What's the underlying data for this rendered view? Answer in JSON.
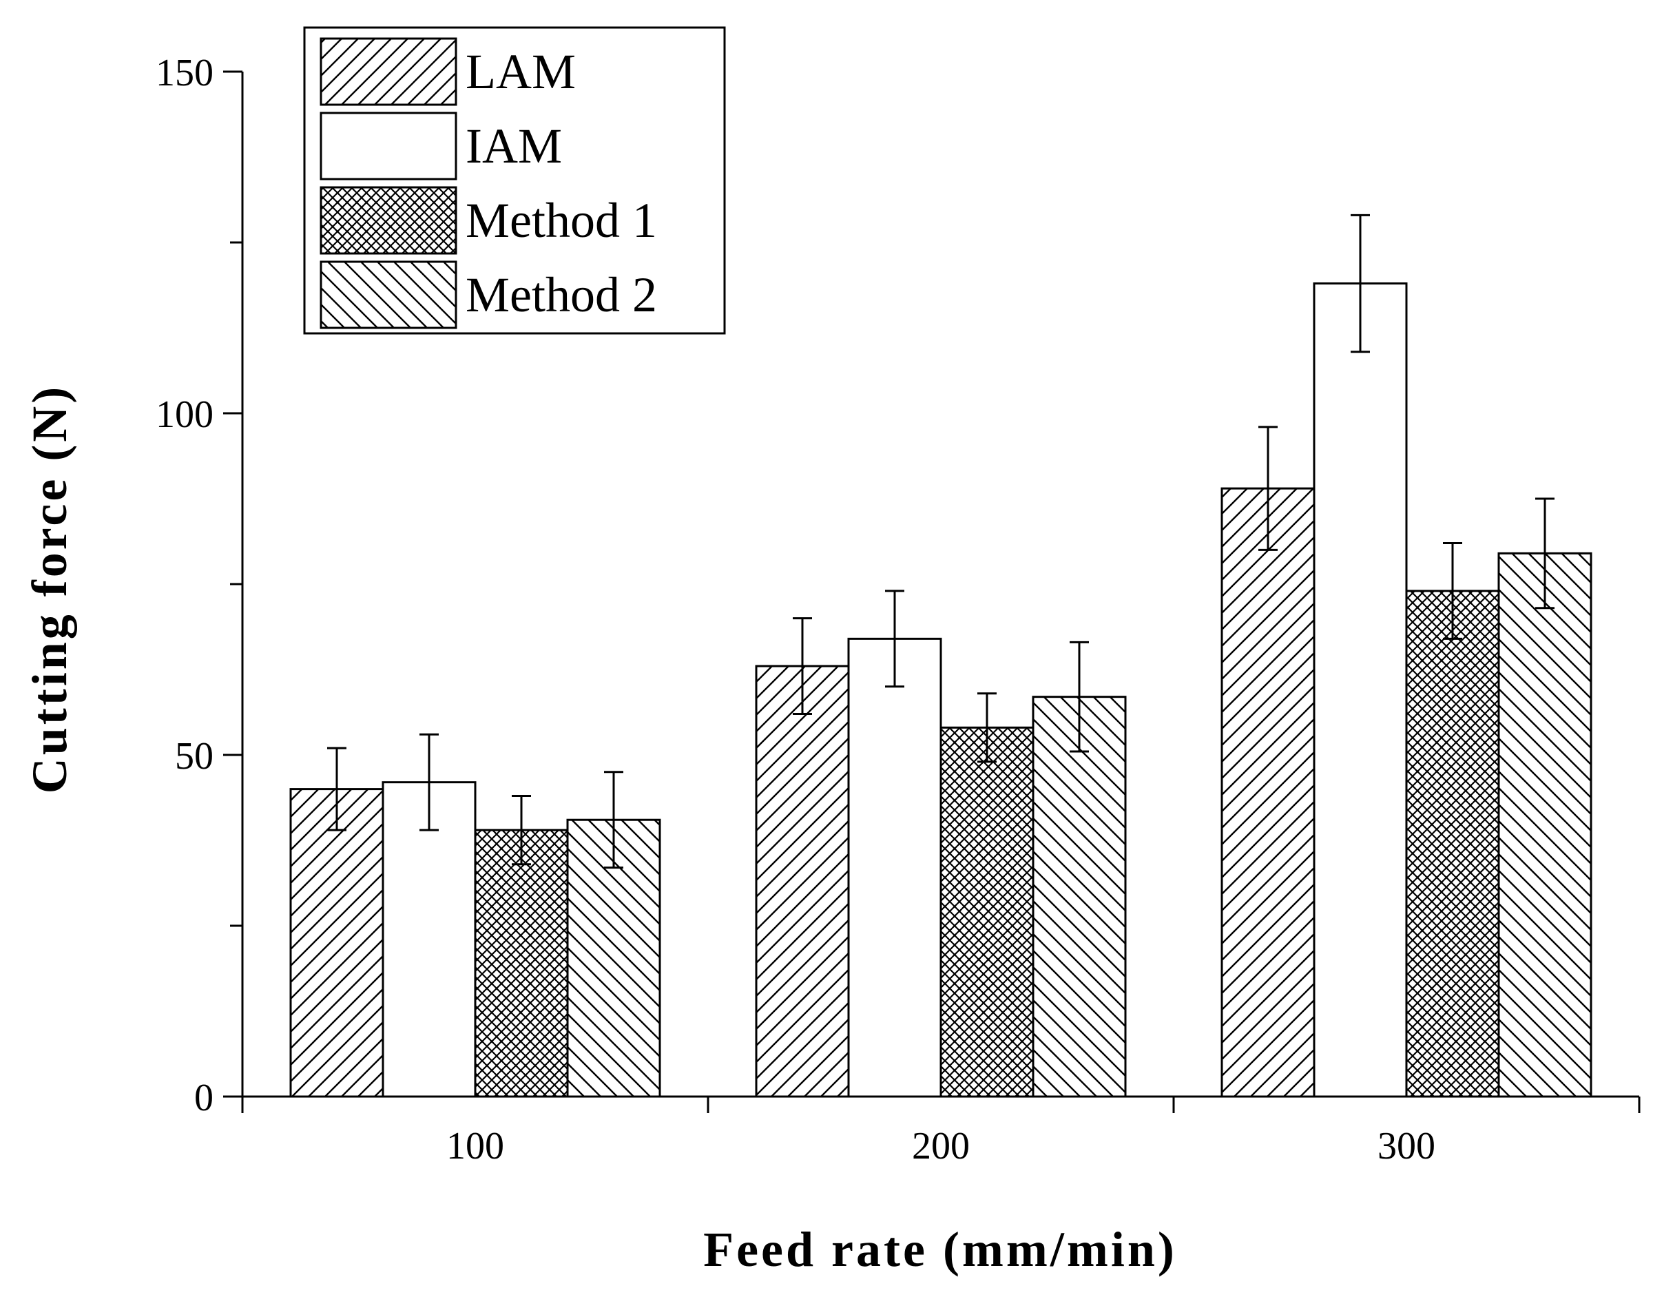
{
  "chart_data": {
    "type": "bar",
    "title": "",
    "xlabel": "Feed rate (mm/min)",
    "ylabel": "Cutting force (N)",
    "categories": [
      "100",
      "200",
      "300"
    ],
    "ylim": [
      0,
      150
    ],
    "yticks": [
      0,
      50,
      100,
      150
    ],
    "y_minor_step": 25,
    "grid": false,
    "legend_position": "top-left",
    "series": [
      {
        "name": "LAM",
        "pattern": "diagonal-forward",
        "values": [
          45,
          63,
          89
        ],
        "errors": [
          6,
          7,
          9
        ]
      },
      {
        "name": "IAM",
        "pattern": "solid-white",
        "values": [
          46,
          67,
          119
        ],
        "errors": [
          7,
          7,
          10
        ]
      },
      {
        "name": "Method 1",
        "pattern": "crosshatch",
        "values": [
          39,
          54,
          74
        ],
        "errors": [
          5,
          5,
          7
        ]
      },
      {
        "name": "Method 2",
        "pattern": "diagonal-backward",
        "values": [
          40.5,
          58.5,
          79.5
        ],
        "errors": [
          7,
          8,
          8
        ]
      }
    ],
    "colors": {
      "line": "#000000",
      "background": "#ffffff"
    }
  }
}
